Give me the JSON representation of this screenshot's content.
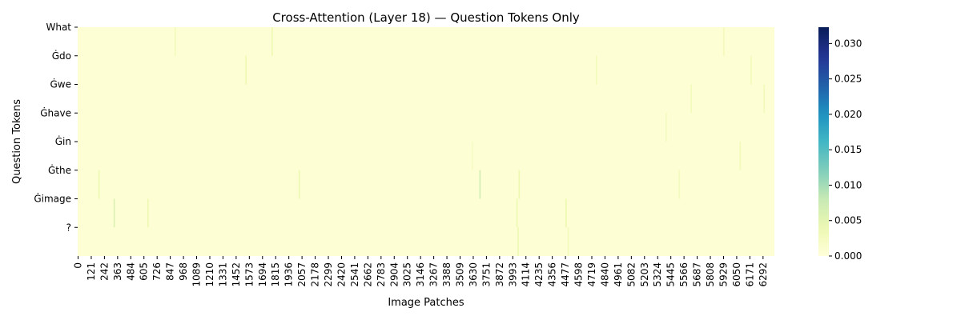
{
  "chart_data": {
    "type": "heatmap",
    "title": "Cross-Attention (Layer 18) — Question Tokens Only",
    "xlabel": "Image Patches",
    "ylabel": "Question Tokens",
    "y_categories": [
      "What",
      "Ġdo",
      "Ġwe",
      "Ġhave",
      "Ġin",
      "Ġthe",
      "Ġimage",
      "?"
    ],
    "x_range": [
      0,
      6399
    ],
    "x_ticks": [
      0,
      121,
      242,
      363,
      484,
      605,
      726,
      847,
      968,
      1089,
      1210,
      1331,
      1452,
      1573,
      1694,
      1815,
      1936,
      2057,
      2178,
      2299,
      2420,
      2541,
      2662,
      2783,
      2904,
      3025,
      3146,
      3267,
      3388,
      3509,
      3630,
      3751,
      3872,
      3993,
      4114,
      4235,
      4356,
      4477,
      4598,
      4719,
      4840,
      4961,
      5082,
      5203,
      5324,
      5445,
      5566,
      5687,
      5808,
      5929,
      6050,
      6171,
      6292
    ],
    "colorscale": "YlGnBu",
    "colorbar": {
      "range": [
        0,
        0.0323
      ],
      "ticks": [
        "0.000",
        "0.005",
        "0.010",
        "0.015",
        "0.020",
        "0.025",
        "0.030"
      ]
    },
    "background_value": 0.0005,
    "highlights": [
      {
        "row": 0,
        "x": 1780,
        "value": 0.004
      },
      {
        "row": 0,
        "x": 890,
        "value": 0.003
      },
      {
        "row": 0,
        "x": 5930,
        "value": 0.003
      },
      {
        "row": 1,
        "x": 1540,
        "value": 0.004
      },
      {
        "row": 1,
        "x": 4760,
        "value": 0.003
      },
      {
        "row": 1,
        "x": 6180,
        "value": 0.003
      },
      {
        "row": 2,
        "x": 5630,
        "value": 0.003
      },
      {
        "row": 2,
        "x": 6300,
        "value": 0.003
      },
      {
        "row": 3,
        "x": 5400,
        "value": 0.0025
      },
      {
        "row": 4,
        "x": 3620,
        "value": 0.002
      },
      {
        "row": 4,
        "x": 6080,
        "value": 0.003
      },
      {
        "row": 5,
        "x": 3690,
        "value": 0.007
      },
      {
        "row": 5,
        "x": 190,
        "value": 0.004
      },
      {
        "row": 5,
        "x": 2030,
        "value": 0.004
      },
      {
        "row": 5,
        "x": 4050,
        "value": 0.004
      },
      {
        "row": 5,
        "x": 5520,
        "value": 0.003
      },
      {
        "row": 6,
        "x": 330,
        "value": 0.006
      },
      {
        "row": 6,
        "x": 640,
        "value": 0.004
      },
      {
        "row": 6,
        "x": 4480,
        "value": 0.004
      },
      {
        "row": 6,
        "x": 4030,
        "value": 0.004
      },
      {
        "row": 7,
        "x": 4040,
        "value": 0.004
      },
      {
        "row": 7,
        "x": 4500,
        "value": 0.003
      }
    ]
  }
}
